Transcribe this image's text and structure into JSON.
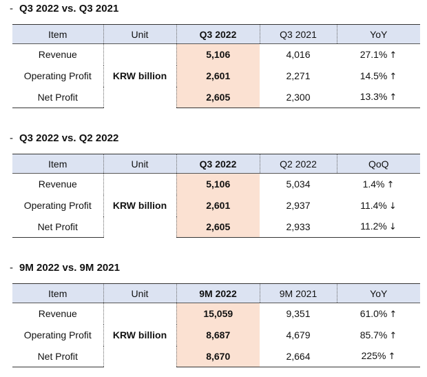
{
  "sections": [
    {
      "bullet": "-",
      "title": "Q3 2022 vs. Q3 2021",
      "headers": [
        "Item",
        "Unit",
        "Q3 2022",
        "Q3 2021",
        "YoY"
      ],
      "unit": "KRW billion",
      "rows": [
        {
          "item": "Revenue",
          "current": "5,106",
          "previous": "4,016",
          "change": "27.1%",
          "direction": "↑"
        },
        {
          "item": "Operating Profit",
          "current": "2,601",
          "previous": "2,271",
          "change": "14.5%",
          "direction": "↑"
        },
        {
          "item": "Net Profit",
          "current": "2,605",
          "previous": "2,300",
          "change": "13.3%",
          "direction": "↑"
        }
      ]
    },
    {
      "bullet": "-",
      "title": "Q3 2022 vs. Q2 2022",
      "headers": [
        "Item",
        "Unit",
        "Q3 2022",
        "Q2 2022",
        "QoQ"
      ],
      "unit": "KRW billion",
      "rows": [
        {
          "item": "Revenue",
          "current": "5,106",
          "previous": "5,034",
          "change": "1.4%",
          "direction": "↑"
        },
        {
          "item": "Operating Profit",
          "current": "2,601",
          "previous": "2,937",
          "change": "11.4%",
          "direction": "↓"
        },
        {
          "item": "Net Profit",
          "current": "2,605",
          "previous": "2,933",
          "change": "11.2%",
          "direction": "↓"
        }
      ]
    },
    {
      "bullet": "-",
      "title": "9M 2022 vs. 9M 2021",
      "headers": [
        "Item",
        "Unit",
        "9M 2022",
        "9M 2021",
        "YoY"
      ],
      "unit": "KRW billion",
      "rows": [
        {
          "item": "Revenue",
          "current": "15,059",
          "previous": "9,351",
          "change": "61.0%",
          "direction": "↑"
        },
        {
          "item": "Operating Profit",
          "current": "8,687",
          "previous": "4,679",
          "change": "85.7%",
          "direction": "↑"
        },
        {
          "item": "Net Profit",
          "current": "8,670",
          "previous": "2,664",
          "change": "225%",
          "direction": "↑"
        }
      ]
    }
  ],
  "colors": {
    "header_fill": "#dce3f2",
    "current_period_fill": "#fbe1d2"
  }
}
